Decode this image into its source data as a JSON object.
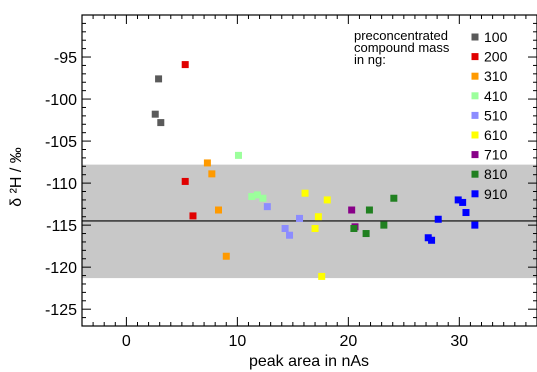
{
  "chart_data": {
    "type": "scatter",
    "title": "",
    "xlabel": "peak area in nAs",
    "ylabel": "δ ²H / ‰",
    "xlim": [
      -4,
      37
    ],
    "ylim": [
      -127,
      -90
    ],
    "x_ticks": [
      0,
      10,
      20,
      30
    ],
    "y_ticks": [
      -95,
      -100,
      -105,
      -110,
      -115,
      -120,
      -125
    ],
    "grid": false,
    "band": {
      "y_min": -121.3,
      "y_max": -107.8,
      "color": "#c8c8c8"
    },
    "reference_line": {
      "y": -114.5,
      "color": "#000000"
    },
    "legend": {
      "title_lines": [
        "preconcentrated",
        "compound mass",
        "in ng:"
      ],
      "placement": "top-right"
    },
    "series": [
      {
        "name": "100",
        "color": "#5a5a5a",
        "points": [
          [
            2.6,
            -101.8
          ],
          [
            2.9,
            -97.6
          ],
          [
            3.1,
            -102.8
          ]
        ]
      },
      {
        "name": "200",
        "color": "#e00000",
        "points": [
          [
            5.3,
            -95.9
          ],
          [
            5.3,
            -109.8
          ],
          [
            6.0,
            -113.9
          ]
        ]
      },
      {
        "name": "310",
        "color": "#ff9a00",
        "points": [
          [
            7.3,
            -107.6
          ],
          [
            7.7,
            -108.9
          ],
          [
            8.3,
            -113.2
          ],
          [
            9.0,
            -118.7
          ]
        ]
      },
      {
        "name": "410",
        "color": "#9cff9c",
        "points": [
          [
            10.1,
            -106.7
          ],
          [
            11.3,
            -111.6
          ],
          [
            11.8,
            -111.4
          ],
          [
            12.3,
            -111.8
          ]
        ]
      },
      {
        "name": "510",
        "color": "#8c8cff",
        "points": [
          [
            12.7,
            -112.8
          ],
          [
            14.3,
            -115.4
          ],
          [
            14.7,
            -116.2
          ],
          [
            15.6,
            -114.2
          ]
        ]
      },
      {
        "name": "610",
        "color": "#ffff00",
        "points": [
          [
            16.1,
            -111.2
          ],
          [
            17.0,
            -115.4
          ],
          [
            17.3,
            -114.0
          ],
          [
            17.6,
            -121.1
          ],
          [
            18.1,
            -112.0
          ]
        ]
      },
      {
        "name": "710",
        "color": "#880088",
        "points": [
          [
            20.3,
            -113.2
          ],
          [
            20.6,
            -115.2
          ]
        ]
      },
      {
        "name": "810",
        "color": "#208020",
        "points": [
          [
            20.5,
            -115.4
          ],
          [
            21.6,
            -116.0
          ],
          [
            21.9,
            -113.2
          ],
          [
            23.2,
            -115.0
          ],
          [
            24.1,
            -111.8
          ]
        ]
      },
      {
        "name": "910",
        "color": "#0000ff",
        "points": [
          [
            27.2,
            -116.5
          ],
          [
            27.5,
            -116.8
          ],
          [
            28.1,
            -114.3
          ],
          [
            29.9,
            -112.0
          ],
          [
            30.3,
            -112.3
          ],
          [
            30.6,
            -113.5
          ],
          [
            31.4,
            -115.0
          ]
        ]
      }
    ]
  }
}
